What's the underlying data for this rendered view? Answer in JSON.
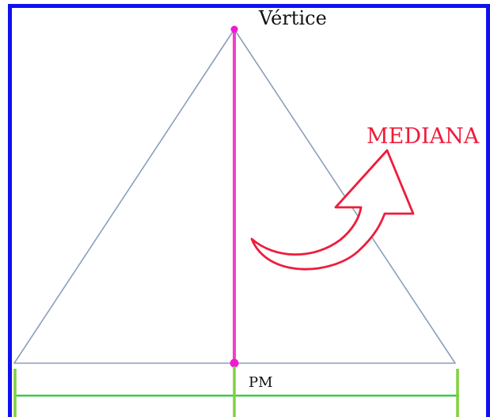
{
  "labels": {
    "vertex": "Vértice",
    "median": "MEDIANA",
    "midpoint": "PM"
  },
  "colors": {
    "frame": "#1010ee",
    "triangle": "#8c9fba",
    "median": "#f13fcd",
    "point": "#f01ad2",
    "arrow": "#ee1c3a",
    "base_segment": "#3fc84a",
    "tick": "#7fd13c"
  }
}
